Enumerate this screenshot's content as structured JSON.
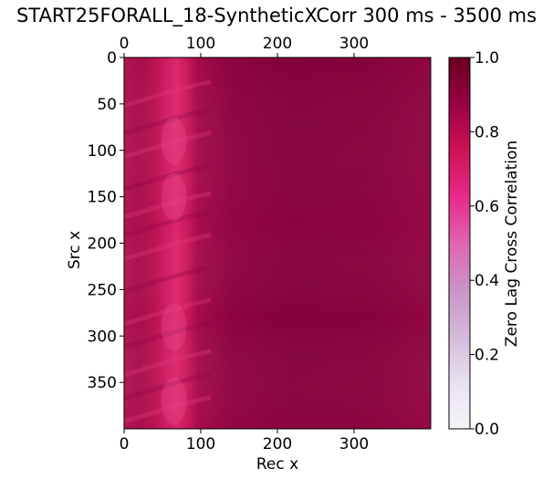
{
  "chart_data": {
    "type": "heatmap",
    "title": "START25FORALL_18-SyntheticXCorr 300 ms - 3500 ms",
    "xlabel": "Rec x",
    "ylabel": "Src x",
    "xlim": [
      0,
      400
    ],
    "ylim": [
      400,
      0
    ],
    "x_ticks": [
      "0",
      "100",
      "200",
      "300"
    ],
    "x_tick_values": [
      0,
      100,
      200,
      300
    ],
    "y_ticks": [
      "0",
      "50",
      "100",
      "150",
      "200",
      "250",
      "300",
      "350"
    ],
    "y_tick_values": [
      0,
      50,
      100,
      150,
      200,
      250,
      300,
      350
    ],
    "x_ticks_top": true,
    "x_ticks_bottom": true,
    "colorbar": {
      "label": "Zero Lag Cross Correlation",
      "range": [
        0.0,
        1.0
      ],
      "ticks": [
        "0.0",
        "0.2",
        "0.4",
        "0.6",
        "0.8",
        "1.0"
      ],
      "tick_values": [
        0.0,
        0.2,
        0.4,
        0.6,
        0.8,
        1.0
      ],
      "colormap": "PuRd",
      "colormap_stops": [
        "#f7f4f9",
        "#e7e1ef",
        "#d4b9da",
        "#c994c7",
        "#df65b0",
        "#e7298a",
        "#ce1256",
        "#980043",
        "#67001f"
      ]
    },
    "x": [
      0,
      20,
      40,
      55,
      65,
      75,
      90,
      110,
      150,
      200,
      250,
      300,
      350,
      400
    ],
    "values_summary_by_rec_x": [
      0.84,
      0.86,
      0.83,
      0.76,
      0.72,
      0.75,
      0.84,
      0.9,
      0.92,
      0.93,
      0.93,
      0.92,
      0.9,
      0.88
    ],
    "value_range_observed": [
      0.7,
      0.95
    ]
  }
}
